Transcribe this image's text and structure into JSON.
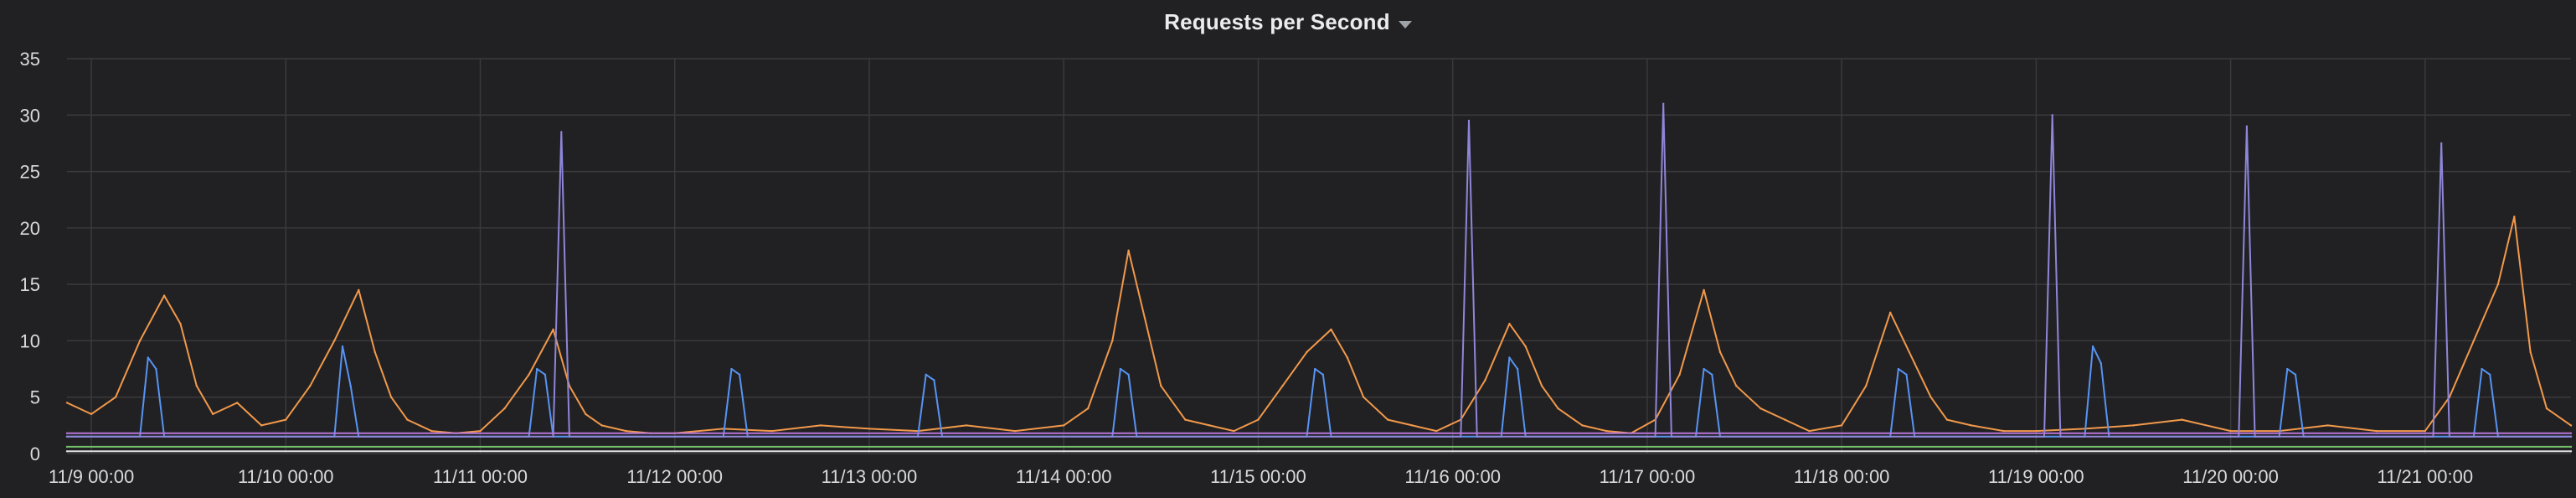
{
  "panel": {
    "title": "Requests per Second"
  },
  "icons": {
    "title_menu": "chevron-down-icon"
  },
  "chart_data": {
    "type": "line",
    "title": "Requests per Second",
    "xlabel": "",
    "ylabel": "",
    "ylim": [
      0,
      35
    ],
    "y_ticks": [
      0,
      5,
      10,
      15,
      20,
      25,
      30,
      35
    ],
    "x_range": [
      "2018-11-08T21:00",
      "2018-11-21T18:00"
    ],
    "x_ticks": [
      {
        "time": "2018-11-09T00:00",
        "label": "11/9 00:00"
      },
      {
        "time": "2018-11-10T00:00",
        "label": "11/10 00:00"
      },
      {
        "time": "2018-11-11T00:00",
        "label": "11/11 00:00"
      },
      {
        "time": "2018-11-12T00:00",
        "label": "11/12 00:00"
      },
      {
        "time": "2018-11-13T00:00",
        "label": "11/13 00:00"
      },
      {
        "time": "2018-11-14T00:00",
        "label": "11/14 00:00"
      },
      {
        "time": "2018-11-15T00:00",
        "label": "11/15 00:00"
      },
      {
        "time": "2018-11-16T00:00",
        "label": "11/16 00:00"
      },
      {
        "time": "2018-11-17T00:00",
        "label": "11/17 00:00"
      },
      {
        "time": "2018-11-18T00:00",
        "label": "11/18 00:00"
      },
      {
        "time": "2018-11-19T00:00",
        "label": "11/19 00:00"
      },
      {
        "time": "2018-11-20T00:00",
        "label": "11/20 00:00"
      },
      {
        "time": "2018-11-21T00:00",
        "label": "11/21 00:00"
      }
    ],
    "grid": true,
    "legend": "none",
    "colors": {
      "background": "#212124",
      "grid": "#3a3a3d",
      "axis_text": "#d8d9da",
      "title": "#ececec"
    },
    "series": [
      {
        "color": "#f2994a",
        "x": [
          "2018-11-08T21:00",
          "2018-11-09T00:00",
          "2018-11-09T03:00",
          "2018-11-09T06:00",
          "2018-11-09T09:00",
          "2018-11-09T11:00",
          "2018-11-09T13:00",
          "2018-11-09T15:00",
          "2018-11-09T18:00",
          "2018-11-09T21:00",
          "2018-11-10T00:00",
          "2018-11-10T03:00",
          "2018-11-10T06:00",
          "2018-11-10T09:00",
          "2018-11-10T11:00",
          "2018-11-10T13:00",
          "2018-11-10T15:00",
          "2018-11-10T18:00",
          "2018-11-10T21:00",
          "2018-11-11T00:00",
          "2018-11-11T03:00",
          "2018-11-11T06:00",
          "2018-11-11T09:00",
          "2018-11-11T11:00",
          "2018-11-11T13:00",
          "2018-11-11T15:00",
          "2018-11-11T18:00",
          "2018-11-11T21:00",
          "2018-11-12T00:00",
          "2018-11-12T06:00",
          "2018-11-12T12:00",
          "2018-11-12T18:00",
          "2018-11-13T00:00",
          "2018-11-13T06:00",
          "2018-11-13T12:00",
          "2018-11-13T18:00",
          "2018-11-14T00:00",
          "2018-11-14T03:00",
          "2018-11-14T06:00",
          "2018-11-14T08:00",
          "2018-11-14T10:00",
          "2018-11-14T12:00",
          "2018-11-14T15:00",
          "2018-11-14T18:00",
          "2018-11-14T21:00",
          "2018-11-15T00:00",
          "2018-11-15T03:00",
          "2018-11-15T06:00",
          "2018-11-15T09:00",
          "2018-11-15T11:00",
          "2018-11-15T13:00",
          "2018-11-15T16:00",
          "2018-11-15T19:00",
          "2018-11-15T22:00",
          "2018-11-16T01:00",
          "2018-11-16T04:00",
          "2018-11-16T07:00",
          "2018-11-16T09:00",
          "2018-11-16T11:00",
          "2018-11-16T13:00",
          "2018-11-16T16:00",
          "2018-11-16T19:00",
          "2018-11-16T22:00",
          "2018-11-17T01:00",
          "2018-11-17T04:00",
          "2018-11-17T07:00",
          "2018-11-17T09:00",
          "2018-11-17T11:00",
          "2018-11-17T14:00",
          "2018-11-17T17:00",
          "2018-11-17T20:00",
          "2018-11-18T00:00",
          "2018-11-18T03:00",
          "2018-11-18T06:00",
          "2018-11-18T09:00",
          "2018-11-18T11:00",
          "2018-11-18T13:00",
          "2018-11-18T16:00",
          "2018-11-18T20:00",
          "2018-11-19T00:00",
          "2018-11-19T06:00",
          "2018-11-19T12:00",
          "2018-11-19T18:00",
          "2018-11-20T00:00",
          "2018-11-20T06:00",
          "2018-11-20T12:00",
          "2018-11-20T18:00",
          "2018-11-21T00:00",
          "2018-11-21T03:00",
          "2018-11-21T06:00",
          "2018-11-21T09:00",
          "2018-11-21T11:00",
          "2018-11-21T13:00",
          "2018-11-21T15:00",
          "2018-11-21T18:00"
        ],
        "y": [
          4.5,
          3.5,
          5.0,
          10.0,
          14.0,
          11.5,
          6.0,
          3.5,
          4.5,
          2.5,
          3.0,
          6.0,
          10.0,
          14.5,
          9.0,
          5.0,
          3.0,
          2.0,
          1.8,
          2.0,
          4.0,
          7.0,
          11.0,
          6.0,
          3.5,
          2.5,
          2.0,
          1.8,
          1.8,
          2.2,
          2.0,
          2.5,
          2.2,
          2.0,
          2.5,
          2.0,
          2.5,
          4.0,
          10.0,
          18.0,
          12.0,
          6.0,
          3.0,
          2.5,
          2.0,
          3.0,
          6.0,
          9.0,
          11.0,
          8.5,
          5.0,
          3.0,
          2.5,
          2.0,
          3.0,
          6.5,
          11.5,
          9.5,
          6.0,
          4.0,
          2.5,
          2.0,
          1.8,
          3.0,
          7.0,
          14.5,
          9.0,
          6.0,
          4.0,
          3.0,
          2.0,
          2.5,
          6.0,
          12.5,
          8.0,
          5.0,
          3.0,
          2.5,
          2.0,
          2.0,
          2.2,
          2.5,
          3.0,
          2.0,
          2.0,
          2.5,
          2.0,
          2.0,
          5.0,
          10.0,
          15.0,
          21.0,
          9.0,
          4.0,
          2.5
        ]
      },
      {
        "color": "#5794f2",
        "x": [
          "2018-11-08T21:00",
          "2018-11-09T06:00",
          "2018-11-09T07:00",
          "2018-11-09T08:00",
          "2018-11-09T09:00",
          "2018-11-10T00:00",
          "2018-11-10T06:00",
          "2018-11-10T07:00",
          "2018-11-10T08:00",
          "2018-11-10T09:00",
          "2018-11-11T00:00",
          "2018-11-11T06:00",
          "2018-11-11T07:00",
          "2018-11-11T08:00",
          "2018-11-11T09:00",
          "2018-11-12T00:00",
          "2018-11-12T06:00",
          "2018-11-12T07:00",
          "2018-11-12T08:00",
          "2018-11-12T09:00",
          "2018-11-13T00:00",
          "2018-11-13T06:00",
          "2018-11-13T07:00",
          "2018-11-13T08:00",
          "2018-11-13T09:00",
          "2018-11-14T00:00",
          "2018-11-14T06:00",
          "2018-11-14T07:00",
          "2018-11-14T08:00",
          "2018-11-14T09:00",
          "2018-11-15T00:00",
          "2018-11-15T06:00",
          "2018-11-15T07:00",
          "2018-11-15T08:00",
          "2018-11-15T09:00",
          "2018-11-16T00:00",
          "2018-11-16T06:00",
          "2018-11-16T07:00",
          "2018-11-16T08:00",
          "2018-11-16T09:00",
          "2018-11-17T00:00",
          "2018-11-17T06:00",
          "2018-11-17T07:00",
          "2018-11-17T08:00",
          "2018-11-17T09:00",
          "2018-11-18T00:00",
          "2018-11-18T06:00",
          "2018-11-18T07:00",
          "2018-11-18T08:00",
          "2018-11-18T09:00",
          "2018-11-19T00:00",
          "2018-11-19T06:00",
          "2018-11-19T07:00",
          "2018-11-19T08:00",
          "2018-11-19T09:00",
          "2018-11-20T00:00",
          "2018-11-20T06:00",
          "2018-11-20T07:00",
          "2018-11-20T08:00",
          "2018-11-20T09:00",
          "2018-11-21T00:00",
          "2018-11-21T06:00",
          "2018-11-21T07:00",
          "2018-11-21T08:00",
          "2018-11-21T09:00",
          "2018-11-21T18:00"
        ],
        "y": [
          1.5,
          1.5,
          8.5,
          7.5,
          1.5,
          1.5,
          1.5,
          9.5,
          6.0,
          1.5,
          1.5,
          1.5,
          7.5,
          7.0,
          1.5,
          1.5,
          1.5,
          7.5,
          7.0,
          1.5,
          1.5,
          1.5,
          7.0,
          6.5,
          1.5,
          1.5,
          1.5,
          7.5,
          7.0,
          1.5,
          1.5,
          1.5,
          7.5,
          7.0,
          1.5,
          1.5,
          1.5,
          8.5,
          7.5,
          1.5,
          1.5,
          1.5,
          7.5,
          7.0,
          1.5,
          1.5,
          1.5,
          7.5,
          7.0,
          1.5,
          1.5,
          1.5,
          9.5,
          8.0,
          1.5,
          1.5,
          1.5,
          7.5,
          7.0,
          1.5,
          1.5,
          1.5,
          7.5,
          7.0,
          1.5,
          1.5
        ]
      },
      {
        "color": "#8f86d8",
        "x": [
          "2018-11-08T21:00",
          "2018-11-11T09:00",
          "2018-11-11T10:00",
          "2018-11-11T11:00",
          "2018-11-16T01:00",
          "2018-11-16T02:00",
          "2018-11-16T03:00",
          "2018-11-17T01:00",
          "2018-11-17T02:00",
          "2018-11-17T03:00",
          "2018-11-19T01:00",
          "2018-11-19T02:00",
          "2018-11-19T03:00",
          "2018-11-20T01:00",
          "2018-11-20T02:00",
          "2018-11-20T03:00",
          "2018-11-21T01:00",
          "2018-11-21T02:00",
          "2018-11-21T03:00",
          "2018-11-21T18:00"
        ],
        "y": [
          1.5,
          1.5,
          28.5,
          1.5,
          1.5,
          29.5,
          1.5,
          1.5,
          31.0,
          1.5,
          1.5,
          30.0,
          1.5,
          1.5,
          29.0,
          1.5,
          1.5,
          27.5,
          1.5,
          1.5
        ]
      },
      {
        "color": "#b877d9",
        "x": [
          "2018-11-08T21:00",
          "2018-11-21T18:00"
        ],
        "y": [
          1.8,
          1.8
        ]
      },
      {
        "color": "#73bf69",
        "x": [
          "2018-11-08T21:00",
          "2018-11-21T18:00"
        ],
        "y": [
          0.6,
          0.6
        ]
      },
      {
        "color": "#e0e0e0",
        "x": [
          "2018-11-08T21:00",
          "2018-11-21T18:00"
        ],
        "y": [
          0.2,
          0.2
        ]
      }
    ]
  }
}
